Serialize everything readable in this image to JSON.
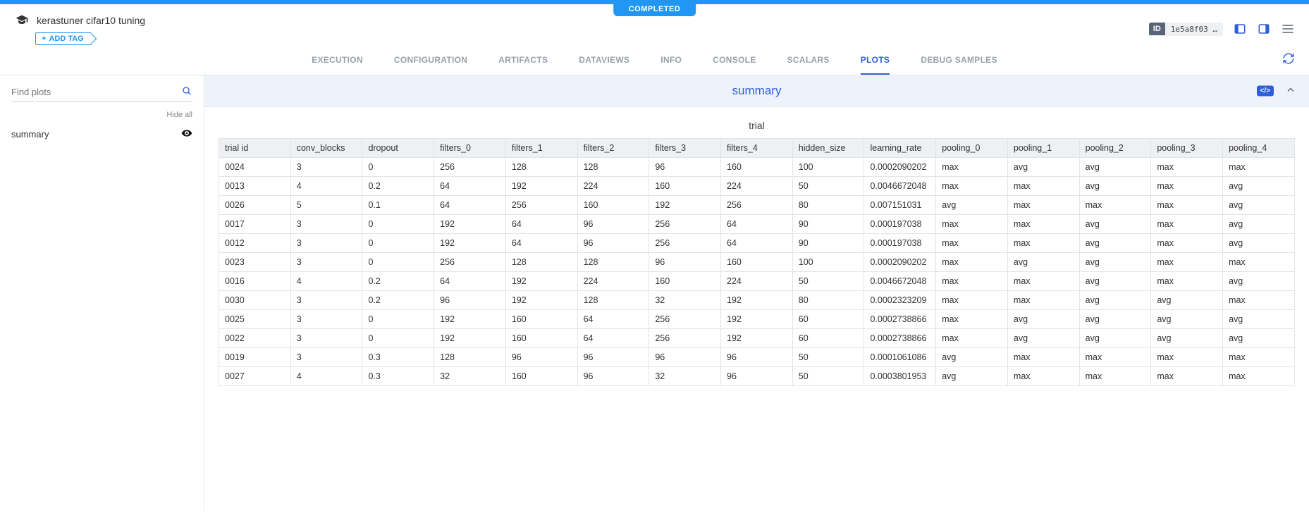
{
  "status_pill": "COMPLETED",
  "experiment": {
    "title": "kerastuner cifar10 tuning",
    "add_tag_label": "ADD TAG",
    "id_label": "ID",
    "id_value": "1e5a8f03 …"
  },
  "tabs": [
    "EXECUTION",
    "CONFIGURATION",
    "ARTIFACTS",
    "DATAVIEWS",
    "INFO",
    "CONSOLE",
    "SCALARS",
    "PLOTS",
    "DEBUG SAMPLES"
  ],
  "active_tab_index": 7,
  "sidebar": {
    "search_placeholder": "Find plots",
    "hide_all_label": "Hide all",
    "items": [
      {
        "label": "summary"
      }
    ]
  },
  "section": {
    "title": "summary",
    "code_chip": "</>"
  },
  "table": {
    "title": "trial",
    "columns": [
      "trial id",
      "conv_blocks",
      "dropout",
      "filters_0",
      "filters_1",
      "filters_2",
      "filters_3",
      "filters_4",
      "hidden_size",
      "learning_rate",
      "pooling_0",
      "pooling_1",
      "pooling_2",
      "pooling_3",
      "pooling_4"
    ],
    "rows": [
      [
        "0024",
        "3",
        "0",
        "256",
        "128",
        "128",
        "96",
        "160",
        "100",
        "0.0002090202",
        "max",
        "avg",
        "avg",
        "max",
        "max"
      ],
      [
        "0013",
        "4",
        "0.2",
        "64",
        "192",
        "224",
        "160",
        "224",
        "50",
        "0.0046672048",
        "max",
        "max",
        "avg",
        "max",
        "avg"
      ],
      [
        "0026",
        "5",
        "0.1",
        "64",
        "256",
        "160",
        "192",
        "256",
        "80",
        "0.007151031",
        "avg",
        "max",
        "max",
        "max",
        "avg"
      ],
      [
        "0017",
        "3",
        "0",
        "192",
        "64",
        "96",
        "256",
        "64",
        "90",
        "0.000197038",
        "max",
        "max",
        "avg",
        "max",
        "avg"
      ],
      [
        "0012",
        "3",
        "0",
        "192",
        "64",
        "96",
        "256",
        "64",
        "90",
        "0.000197038",
        "max",
        "max",
        "avg",
        "max",
        "avg"
      ],
      [
        "0023",
        "3",
        "0",
        "256",
        "128",
        "128",
        "96",
        "160",
        "100",
        "0.0002090202",
        "max",
        "avg",
        "avg",
        "max",
        "max"
      ],
      [
        "0016",
        "4",
        "0.2",
        "64",
        "192",
        "224",
        "160",
        "224",
        "50",
        "0.0046672048",
        "max",
        "max",
        "avg",
        "max",
        "avg"
      ],
      [
        "0030",
        "3",
        "0.2",
        "96",
        "192",
        "128",
        "32",
        "192",
        "80",
        "0.0002323209",
        "max",
        "max",
        "avg",
        "avg",
        "max"
      ],
      [
        "0025",
        "3",
        "0",
        "192",
        "160",
        "64",
        "256",
        "192",
        "60",
        "0.0002738866",
        "max",
        "avg",
        "avg",
        "avg",
        "avg"
      ],
      [
        "0022",
        "3",
        "0",
        "192",
        "160",
        "64",
        "256",
        "192",
        "60",
        "0.0002738866",
        "max",
        "avg",
        "avg",
        "avg",
        "avg"
      ],
      [
        "0019",
        "3",
        "0.3",
        "128",
        "96",
        "96",
        "96",
        "96",
        "50",
        "0.0001061086",
        "avg",
        "max",
        "max",
        "max",
        "max"
      ],
      [
        "0027",
        "4",
        "0.3",
        "32",
        "160",
        "96",
        "32",
        "96",
        "50",
        "0.0003801953",
        "avg",
        "max",
        "max",
        "max",
        "max"
      ]
    ]
  },
  "colors": {
    "accent": "#2196f3",
    "link": "#2e5fd9",
    "section_bg": "#eef2fb",
    "th_bg": "#eef0f4",
    "border": "#e1e4e8"
  }
}
